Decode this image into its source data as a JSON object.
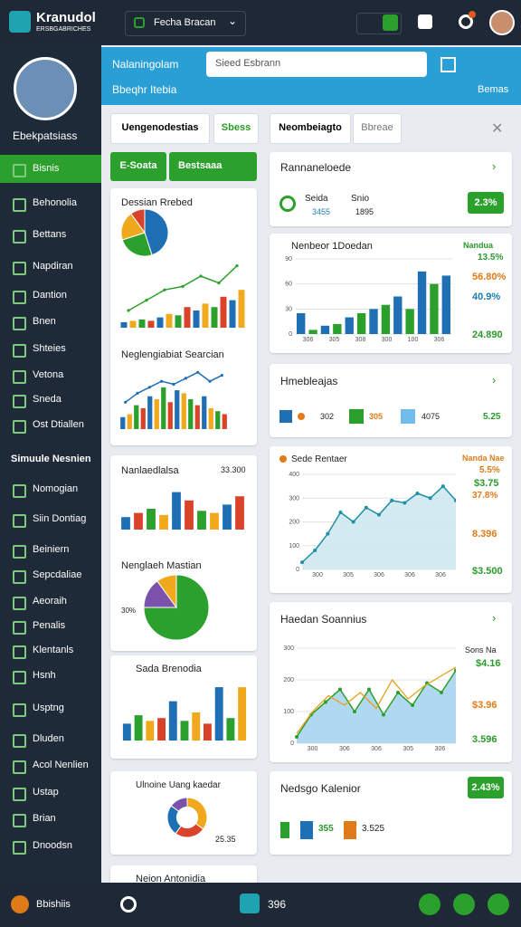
{
  "topbar": {
    "brand": "Kranudol",
    "brand_sub": "ERSBGABRICHES",
    "dropdown": "Fecha Bracan"
  },
  "header": {
    "title": "Nalaningolam",
    "search": "Sieed Esbrann",
    "subtitle": "Bbeqhr Itebia",
    "action": "Bemas"
  },
  "sidebar": {
    "user": "Ebekpatsiass",
    "items": [
      "Bisnis",
      "Behonolia",
      "Bettans",
      "Napdiran",
      "Dantion",
      "Bnen",
      "Shteies",
      "Vetona",
      "Sneda",
      "Ost Dtiallen"
    ],
    "section": "Simuule Nesnien",
    "items2": [
      "Nomogian",
      "Siin Dontiag",
      "Beiniern",
      "Sepcdaliae",
      "Aeoraih",
      "Penalis",
      "Klentanls",
      "Hsnh",
      "Usptng",
      "Dluden",
      "Acol Nenlien",
      "Ustap",
      "Brian",
      "Dnoodsn"
    ]
  },
  "tabs": {
    "left": [
      "Uengenodestias",
      "Sbess"
    ],
    "right": [
      "Neombeiagto",
      "Bbreae"
    ]
  },
  "buttons": [
    "E-Soata",
    "Bestsaaa"
  ],
  "left_cards": {
    "dessian": {
      "title": "Dessian Rrebed",
      "pie": {
        "type": "pie",
        "values": [
          45,
          25,
          20,
          10
        ],
        "colors": [
          "#1f6fb5",
          "#2ca02c",
          "#f0a81c",
          "#d9432a"
        ]
      },
      "bars": {
        "type": "bar",
        "ylim": [
          0,
          100
        ],
        "values": [
          8,
          10,
          12,
          10,
          15,
          20,
          18,
          30,
          25,
          35,
          30,
          45,
          40,
          55
        ],
        "colors": [
          "#1f6fb5",
          "#f0a81c",
          "#2ca02c",
          "#d9432a"
        ],
        "line": {
          "values": [
            25,
            40,
            55,
            60,
            75,
            65,
            90
          ],
          "color": "#2ca02c"
        }
      }
    },
    "searcian": {
      "title": "Neglengiabiat Searcian",
      "bars": {
        "type": "bar",
        "ylim": [
          0,
          100
        ],
        "values": [
          20,
          25,
          40,
          35,
          55,
          50,
          70,
          45,
          65,
          60,
          50,
          40,
          55,
          35,
          30,
          25
        ],
        "colors": [
          "#1f6fb5",
          "#f0a81c",
          "#2ca02c",
          "#d9432a"
        ],
        "line": {
          "values": [
            45,
            60,
            70,
            80,
            75,
            85,
            95,
            80,
            90
          ],
          "color": "#1f6fb5"
        }
      }
    },
    "nanlaedlalsa": {
      "title": "Nanlaedlalsa",
      "value": "33.300",
      "bars": {
        "type": "bar",
        "ylim": [
          0,
          100
        ],
        "values": [
          30,
          40,
          50,
          35,
          90,
          70,
          45,
          40,
          60,
          80
        ],
        "colors": [
          "#1f6fb5",
          "#d9432a",
          "#2ca02c",
          "#f0a81c"
        ]
      }
    },
    "mastian": {
      "title": "Nenglaeh Mastian",
      "value": "30%",
      "pie": {
        "type": "pie",
        "values": [
          75,
          15,
          10
        ],
        "colors": [
          "#2ca02c",
          "#7b52ab",
          "#f0a81c"
        ]
      }
    },
    "sada": {
      "title": "Sada Brenodia",
      "bars": {
        "type": "bar",
        "ylim": [
          0,
          100
        ],
        "values": [
          30,
          45,
          35,
          40,
          70,
          35,
          50,
          30,
          95,
          40,
          95
        ],
        "colors": [
          "#1f6fb5",
          "#2ca02c",
          "#f0a81c",
          "#d9432a"
        ]
      }
    },
    "uang": {
      "title": "Ulnoine Uang kaedar",
      "value": "25.35",
      "donut": {
        "type": "pie",
        "donut": true,
        "values": [
          35,
          25,
          25,
          15
        ],
        "colors": [
          "#f0a81c",
          "#d9432a",
          "#1f6fb5",
          "#7b52ab"
        ]
      }
    },
    "antonidia": {
      "title": "Neion Antonidia"
    }
  },
  "right_cards": {
    "rannaneloede": {
      "title": "Rannaneloede",
      "items": [
        "Seida",
        "Snio",
        "3455",
        "1895"
      ],
      "badge": "2.3%"
    },
    "doedan": {
      "title": "Nenbeor 1Doedan",
      "chart": {
        "type": "bar",
        "ylim": [
          0,
          90
        ],
        "yticks": [
          0,
          30,
          60,
          90
        ],
        "categories": [
          "306",
          "305",
          "308",
          "300",
          "100",
          "306"
        ],
        "values": [
          25,
          5,
          10,
          12,
          20,
          25,
          30,
          35,
          45,
          30,
          75,
          60,
          70
        ],
        "colors": [
          "#1f6fb5",
          "#2ca02c"
        ]
      },
      "legend": "Nandua",
      "stats": [
        "13.5%",
        "56.80%",
        "40.9%",
        "24.890"
      ]
    },
    "hmebleajas": {
      "title": "Hmebleajas",
      "items": [
        "302",
        "305",
        "4075",
        "5.25"
      ]
    },
    "rentaer": {
      "title": "Sede Rentaer",
      "chart": {
        "type": "area",
        "ylim": [
          0,
          400
        ],
        "yticks": [
          0,
          100,
          200,
          300,
          400
        ],
        "categories": [
          "300",
          "305",
          "306",
          "306",
          "306"
        ],
        "values": [
          30,
          80,
          150,
          240,
          200,
          260,
          230,
          290,
          280,
          320,
          300,
          350,
          290
        ],
        "color": "#1e90a6",
        "fill": "#cfe8ef"
      },
      "legend": "Nanda Nae",
      "stats": [
        "5.5%",
        "$3.75",
        "37.8%",
        "8.396",
        "$3.500"
      ]
    },
    "soannius": {
      "title": "Haedan Soannius",
      "chart": {
        "type": "area",
        "ylim": [
          0,
          300
        ],
        "yticks": [
          0,
          100,
          200,
          300
        ],
        "categories": [
          "300",
          "306",
          "306",
          "305",
          "306"
        ],
        "values": [
          20,
          90,
          130,
          170,
          100,
          170,
          90,
          160,
          120,
          190,
          160,
          230
        ],
        "color": "#2ca02c",
        "fill": "#a9d4ef",
        "line": {
          "values": [
            30,
            100,
            150,
            120,
            160,
            110,
            200,
            140,
            180,
            210,
            240
          ],
          "color": "#e6a21a"
        }
      },
      "legend": "Sons Na",
      "stats": [
        "$4.16",
        "$3.96",
        "3.596"
      ]
    },
    "kalenior": {
      "title": "Nedsgo Kalenior",
      "badge": "2.43%",
      "items": [
        "355",
        "3.525"
      ]
    }
  },
  "bottombar": {
    "label": "Bbishiis",
    "value": "396"
  }
}
